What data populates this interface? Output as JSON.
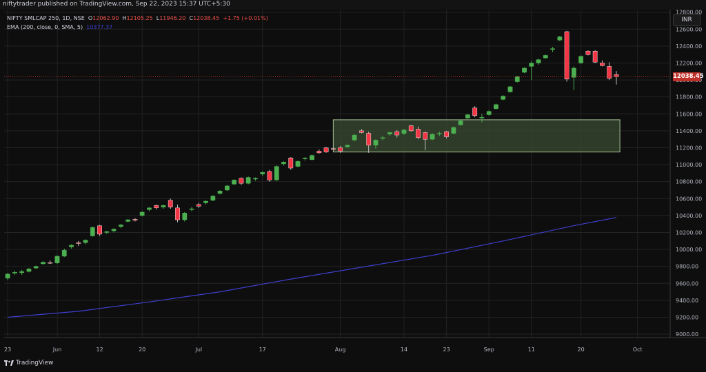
{
  "header": {
    "publish_line": "niftytrader published on TradingView.com, Sep 22, 2023 15:37 UTC+5:30"
  },
  "legend": {
    "symbol": "NIFTY SMLCAP 250, 1D, NSE",
    "o_label": "O",
    "o_value": "12062.90",
    "h_label": "H",
    "h_value": "12105.25",
    "l_label": "L",
    "l_value": "11946.20",
    "c_label": "C",
    "c_value": "12038.45",
    "change": "+1.75 (+0.01%)",
    "ema_label": "EMA (200, close, 0, SMA, 5)",
    "ema_value": "10377.37"
  },
  "currency_button": "INR",
  "last_price_label": "12038.45",
  "brand": "TradingView",
  "colors": {
    "up": "#4caf50",
    "down": "#f23645",
    "ema": "#3f3fd1",
    "zone_fill": "#3c4f33",
    "zone_stroke": "#a5c096",
    "background": "#0e0e0e",
    "grid": "#232323"
  },
  "chart_data": {
    "type": "candlestick",
    "y_axis": {
      "ticks": [
        9000,
        9200,
        9400,
        9600,
        9800,
        10000,
        10200,
        10400,
        10600,
        10800,
        11000,
        11200,
        11400,
        11600,
        11800,
        12000,
        12200,
        12400,
        12600,
        12800
      ],
      "tick_labels": [
        "9000.00",
        "9200.00",
        "9400.00",
        "9600.00",
        "9800.00",
        "10000.00",
        "10200.00",
        "10400.00",
        "10600.00",
        "10800.00",
        "11000.00",
        "11200.00",
        "11400.00",
        "11600.00",
        "11800.00",
        "12000.00",
        "12200.00",
        "12400.00",
        "12600.00",
        "12800.00"
      ],
      "ylim": [
        8960,
        12830
      ],
      "side": "right"
    },
    "x_axis": {
      "labels": [
        {
          "text": "23",
          "index": 0
        },
        {
          "text": "Jun",
          "index": 7
        },
        {
          "text": "12",
          "index": 13
        },
        {
          "text": "20",
          "index": 19
        },
        {
          "text": "Jul",
          "index": 27
        },
        {
          "text": "17",
          "index": 36
        },
        {
          "text": "Aug",
          "index": 47
        },
        {
          "text": "14",
          "index": 56
        },
        {
          "text": "23",
          "index": 62
        },
        {
          "text": "Sep",
          "index": 68
        },
        {
          "text": "11",
          "index": 74
        },
        {
          "text": "20",
          "index": 81
        },
        {
          "text": "Oct",
          "index": 89
        }
      ],
      "domain_indices": [
        -0.5,
        93.6
      ]
    },
    "candles": [
      {
        "o": 9660,
        "h": 9720,
        "l": 9640,
        "c": 9710
      },
      {
        "o": 9720,
        "h": 9750,
        "l": 9700,
        "c": 9730
      },
      {
        "o": 9725,
        "h": 9760,
        "l": 9700,
        "c": 9740
      },
      {
        "o": 9740,
        "h": 9780,
        "l": 9730,
        "c": 9770
      },
      {
        "o": 9780,
        "h": 9810,
        "l": 9770,
        "c": 9800
      },
      {
        "o": 9830,
        "h": 9860,
        "l": 9820,
        "c": 9850
      },
      {
        "o": 9845,
        "h": 9870,
        "l": 9830,
        "c": 9840
      },
      {
        "o": 9840,
        "h": 9930,
        "l": 9830,
        "c": 9920
      },
      {
        "o": 9920,
        "h": 10010,
        "l": 9910,
        "c": 9990
      },
      {
        "o": 10030,
        "h": 10060,
        "l": 10010,
        "c": 10050
      },
      {
        "o": 10080,
        "h": 10100,
        "l": 10040,
        "c": 10070
      },
      {
        "o": 10080,
        "h": 10120,
        "l": 10060,
        "c": 10110
      },
      {
        "o": 10160,
        "h": 10270,
        "l": 10150,
        "c": 10260
      },
      {
        "o": 10280,
        "h": 10290,
        "l": 10160,
        "c": 10180
      },
      {
        "o": 10200,
        "h": 10220,
        "l": 10180,
        "c": 10210
      },
      {
        "o": 10220,
        "h": 10250,
        "l": 10200,
        "c": 10240
      },
      {
        "o": 10270,
        "h": 10300,
        "l": 10250,
        "c": 10290
      },
      {
        "o": 10330,
        "h": 10360,
        "l": 10320,
        "c": 10350
      },
      {
        "o": 10355,
        "h": 10370,
        "l": 10330,
        "c": 10345
      },
      {
        "o": 10400,
        "h": 10450,
        "l": 10390,
        "c": 10440
      },
      {
        "o": 10470,
        "h": 10500,
        "l": 10450,
        "c": 10490
      },
      {
        "o": 10520,
        "h": 10530,
        "l": 10470,
        "c": 10490
      },
      {
        "o": 10500,
        "h": 10530,
        "l": 10480,
        "c": 10520
      },
      {
        "o": 10580,
        "h": 10600,
        "l": 10480,
        "c": 10500
      },
      {
        "o": 10490,
        "h": 10530,
        "l": 10320,
        "c": 10350
      },
      {
        "o": 10350,
        "h": 10440,
        "l": 10330,
        "c": 10430
      },
      {
        "o": 10470,
        "h": 10500,
        "l": 10450,
        "c": 10480
      },
      {
        "o": 10530,
        "h": 10550,
        "l": 10490,
        "c": 10510
      },
      {
        "o": 10550,
        "h": 10580,
        "l": 10530,
        "c": 10570
      },
      {
        "o": 10580,
        "h": 10640,
        "l": 10570,
        "c": 10630
      },
      {
        "o": 10660,
        "h": 10700,
        "l": 10650,
        "c": 10690
      },
      {
        "o": 10700,
        "h": 10760,
        "l": 10690,
        "c": 10750
      },
      {
        "o": 10770,
        "h": 10830,
        "l": 10760,
        "c": 10820
      },
      {
        "o": 10840,
        "h": 10850,
        "l": 10760,
        "c": 10780
      },
      {
        "o": 10780,
        "h": 10860,
        "l": 10770,
        "c": 10850
      },
      {
        "o": 10830,
        "h": 10850,
        "l": 10810,
        "c": 10840
      },
      {
        "o": 10890,
        "h": 10920,
        "l": 10870,
        "c": 10910
      },
      {
        "o": 10920,
        "h": 10940,
        "l": 10800,
        "c": 10820
      },
      {
        "o": 10820,
        "h": 10990,
        "l": 10810,
        "c": 10980
      },
      {
        "o": 11010,
        "h": 11040,
        "l": 10990,
        "c": 11030
      },
      {
        "o": 11080,
        "h": 11090,
        "l": 10940,
        "c": 10960
      },
      {
        "o": 10980,
        "h": 11050,
        "l": 10970,
        "c": 11040
      },
      {
        "o": 11070,
        "h": 11090,
        "l": 11050,
        "c": 11080
      },
      {
        "o": 11060,
        "h": 11120,
        "l": 11050,
        "c": 11110
      },
      {
        "o": 11160,
        "h": 11180,
        "l": 11130,
        "c": 11140
      },
      {
        "o": 11200,
        "h": 11210,
        "l": 11140,
        "c": 11150
      },
      {
        "o": 11190,
        "h": 11210,
        "l": 11170,
        "c": 11180
      },
      {
        "o": 11200,
        "h": 11220,
        "l": 11140,
        "c": 11160
      },
      {
        "o": 11210,
        "h": 11240,
        "l": 11200,
        "c": 11230
      },
      {
        "o": 11290,
        "h": 11360,
        "l": 11280,
        "c": 11350
      },
      {
        "o": 11400,
        "h": 11420,
        "l": 11370,
        "c": 11380
      },
      {
        "o": 11370,
        "h": 11390,
        "l": 11140,
        "c": 11230
      },
      {
        "o": 11230,
        "h": 11300,
        "l": 11190,
        "c": 11290
      },
      {
        "o": 11310,
        "h": 11340,
        "l": 11290,
        "c": 11320
      },
      {
        "o": 11360,
        "h": 11390,
        "l": 11340,
        "c": 11380
      },
      {
        "o": 11390,
        "h": 11410,
        "l": 11320,
        "c": 11350
      },
      {
        "o": 11370,
        "h": 11420,
        "l": 11350,
        "c": 11410
      },
      {
        "o": 11460,
        "h": 11470,
        "l": 11390,
        "c": 11400
      },
      {
        "o": 11420,
        "h": 11450,
        "l": 11300,
        "c": 11320
      },
      {
        "o": 11380,
        "h": 11390,
        "l": 11170,
        "c": 11300
      },
      {
        "o": 11300,
        "h": 11370,
        "l": 11290,
        "c": 11360
      },
      {
        "o": 11370,
        "h": 11390,
        "l": 11340,
        "c": 11370
      },
      {
        "o": 11390,
        "h": 11400,
        "l": 11310,
        "c": 11330
      },
      {
        "o": 11370,
        "h": 11450,
        "l": 11360,
        "c": 11440
      },
      {
        "o": 11470,
        "h": 11530,
        "l": 11460,
        "c": 11520
      },
      {
        "o": 11550,
        "h": 11600,
        "l": 11540,
        "c": 11590
      },
      {
        "o": 11670,
        "h": 11690,
        "l": 11560,
        "c": 11580
      },
      {
        "o": 11560,
        "h": 11600,
        "l": 11500,
        "c": 11560
      },
      {
        "o": 11590,
        "h": 11640,
        "l": 11580,
        "c": 11630
      },
      {
        "o": 11660,
        "h": 11720,
        "l": 11650,
        "c": 11710
      },
      {
        "o": 11770,
        "h": 11820,
        "l": 11760,
        "c": 11810
      },
      {
        "o": 11860,
        "h": 11930,
        "l": 11850,
        "c": 11920
      },
      {
        "o": 11980,
        "h": 12050,
        "l": 11970,
        "c": 12040
      },
      {
        "o": 12090,
        "h": 12150,
        "l": 12080,
        "c": 12140
      },
      {
        "o": 12160,
        "h": 12220,
        "l": 12000,
        "c": 12200
      },
      {
        "o": 12200,
        "h": 12250,
        "l": 12180,
        "c": 12240
      },
      {
        "o": 12260,
        "h": 12300,
        "l": 12250,
        "c": 12290
      },
      {
        "o": 12360,
        "h": 12390,
        "l": 12330,
        "c": 12370
      },
      {
        "o": 12470,
        "h": 12520,
        "l": 12460,
        "c": 12510
      },
      {
        "o": 12570,
        "h": 12580,
        "l": 11980,
        "c": 12010
      },
      {
        "o": 12030,
        "h": 12160,
        "l": 11880,
        "c": 12140
      },
      {
        "o": 12200,
        "h": 12290,
        "l": 12190,
        "c": 12280
      },
      {
        "o": 12340,
        "h": 12350,
        "l": 12290,
        "c": 12300
      },
      {
        "o": 12340,
        "h": 12350,
        "l": 12200,
        "c": 12210
      },
      {
        "o": 12200,
        "h": 12230,
        "l": 12160,
        "c": 12170
      },
      {
        "o": 12160,
        "h": 12210,
        "l": 12000,
        "c": 12020
      },
      {
        "o": 12062.9,
        "h": 12105.25,
        "l": 11946.2,
        "c": 12038.45
      }
    ],
    "ema": {
      "name": "EMA (200, close, 0, SMA, 5)",
      "points": [
        {
          "index": 0,
          "value": 9200
        },
        {
          "index": 10,
          "value": 9270
        },
        {
          "index": 20,
          "value": 9380
        },
        {
          "index": 30,
          "value": 9500
        },
        {
          "index": 40,
          "value": 9650
        },
        {
          "index": 50,
          "value": 9790
        },
        {
          "index": 60,
          "value": 9930
        },
        {
          "index": 70,
          "value": 10100
        },
        {
          "index": 80,
          "value": 10280
        },
        {
          "index": 86,
          "value": 10377.37
        }
      ]
    },
    "zone": {
      "from_index": 46,
      "to_index": 86.5,
      "top": 11530,
      "bottom": 11150
    },
    "last_price_line": 12038.45,
    "grid": true
  }
}
